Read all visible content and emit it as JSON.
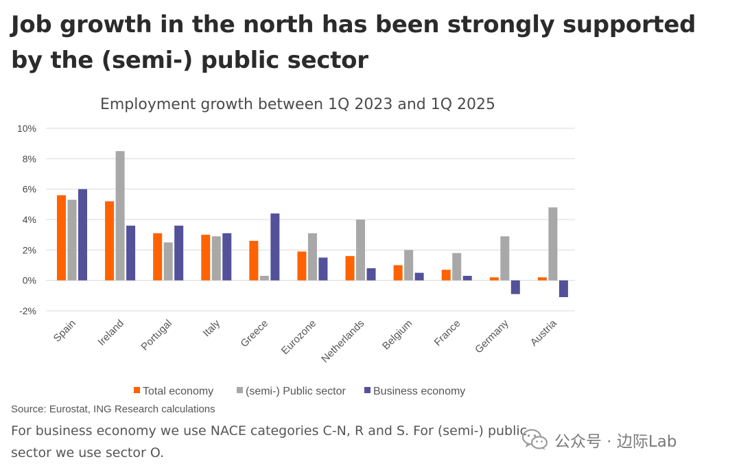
{
  "headline": "Job growth in the north has been strongly supported by the (semi-) public sector",
  "source": "Source: Eurostat, ING Research calculations",
  "note": "For business economy we use NACE categories C-N, R and S. For (semi-) public sector we use sector O.",
  "watermark": {
    "icon": "wechat-icon",
    "text": "公众号 · 边际Lab"
  },
  "colors": {
    "total": "#ff6200",
    "public": "#a8a8a8",
    "business": "#525199",
    "grid": "#d9d9d9"
  },
  "chart_data": {
    "type": "bar",
    "title": "Employment growth between 1Q 2023 and 1Q 2025",
    "xlabel": "",
    "ylabel": "",
    "ylim": [
      -2,
      10
    ],
    "y_ticks": [
      "10%",
      "8%",
      "6%",
      "4%",
      "2%",
      "0%",
      "-2%"
    ],
    "y_tick_values": [
      10,
      8,
      6,
      4,
      2,
      0,
      -2
    ],
    "grid": true,
    "legend_position": "bottom",
    "categories": [
      "Spain",
      "Ireland",
      "Portugal",
      "Italy",
      "Greece",
      "Eurozone",
      "Netherlands",
      "Belgium",
      "France",
      "Germany",
      "Austria"
    ],
    "series": [
      {
        "name": "Total economy",
        "color": "#ff6200",
        "values": [
          5.6,
          5.2,
          3.1,
          3.0,
          2.6,
          1.9,
          1.6,
          1.0,
          0.7,
          0.2,
          0.2
        ]
      },
      {
        "name": "(semi-) Public sector",
        "color": "#a8a8a8",
        "values": [
          5.3,
          8.5,
          2.5,
          2.9,
          0.3,
          3.1,
          4.0,
          2.0,
          1.8,
          2.9,
          4.8
        ]
      },
      {
        "name": "Business economy",
        "color": "#525199",
        "values": [
          6.0,
          3.6,
          3.6,
          3.1,
          4.4,
          1.5,
          0.8,
          0.5,
          0.3,
          -0.9,
          -1.1
        ]
      }
    ]
  }
}
